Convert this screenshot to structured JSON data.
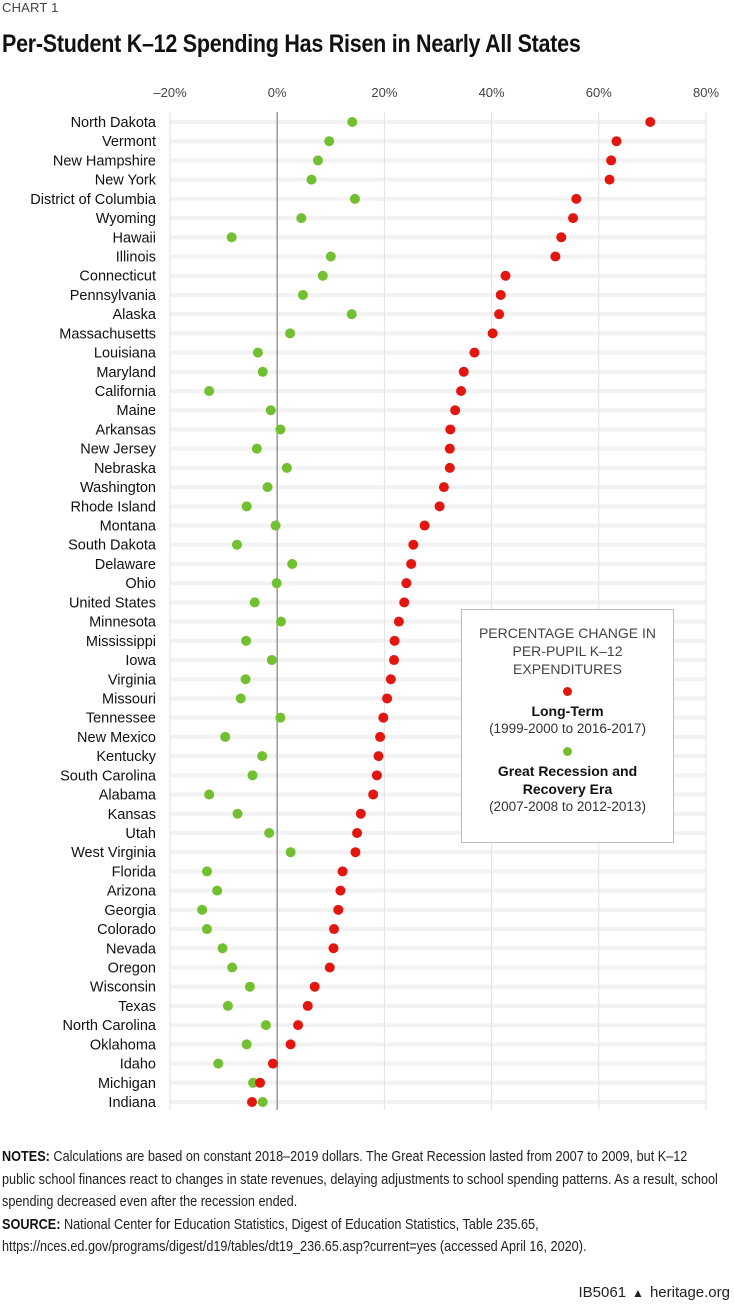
{
  "header": {
    "eyebrow": "CHART 1",
    "title": "Per-Student K–12 Spending Has Risen in Nearly All States"
  },
  "chart_data": {
    "type": "scatter",
    "subtype": "dot-plot",
    "title": "Per-Student K–12 Spending Has Risen in Nearly All States",
    "xlabel": "",
    "ylabel": "",
    "xlim": [
      -20,
      80
    ],
    "xticks": [
      -20,
      0,
      20,
      40,
      60,
      80
    ],
    "xtick_labels": [
      "–20%",
      "0%",
      "20%",
      "40%",
      "60%",
      "80%"
    ],
    "grid": "vertical",
    "legend_placement": "right-middle",
    "categories": [
      "North Dakota",
      "Vermont",
      "New Hampshire",
      "New York",
      "District of Columbia",
      "Wyoming",
      "Hawaii",
      "Illinois",
      "Connecticut",
      "Pennsylvania",
      "Alaska",
      "Massachusetts",
      "Louisiana",
      "Maryland",
      "California",
      "Maine",
      "Arkansas",
      "New Jersey",
      "Nebraska",
      "Washington",
      "Rhode Island",
      "Montana",
      "South Dakota",
      "Delaware",
      "Ohio",
      "United States",
      "Minnesota",
      "Mississippi",
      "Iowa",
      "Virginia",
      "Missouri",
      "Tennessee",
      "New Mexico",
      "Kentucky",
      "South Carolina",
      "Alabama",
      "Kansas",
      "Utah",
      "West Virginia",
      "Florida",
      "Arizona",
      "Georgia",
      "Colorado",
      "Nevada",
      "Oregon",
      "Wisconsin",
      "Texas",
      "North Carolina",
      "Oklahoma",
      "Idaho",
      "Michigan",
      "Indiana"
    ],
    "series": [
      {
        "name": "Long-Term",
        "sub": "(1999-2000 to 2016-2017)",
        "color": "#e3160f",
        "values": [
          69.6,
          63.3,
          62.3,
          62.0,
          55.8,
          55.2,
          53.0,
          51.9,
          42.6,
          41.7,
          41.4,
          40.2,
          36.8,
          34.8,
          34.3,
          33.2,
          32.3,
          32.2,
          32.2,
          31.1,
          30.3,
          27.5,
          25.4,
          25.0,
          24.1,
          23.7,
          22.7,
          21.9,
          21.8,
          21.2,
          20.5,
          19.8,
          19.2,
          18.9,
          18.6,
          17.9,
          15.6,
          14.9,
          14.6,
          12.2,
          11.8,
          11.4,
          10.6,
          10.5,
          9.8,
          7.0,
          5.7,
          3.9,
          2.5,
          -0.8,
          -3.2,
          -4.7
        ]
      },
      {
        "name": "Great Recession and Recovery Era",
        "sub": "(2007-2008 to 2012-2013)",
        "color": "#72bf2f",
        "values": [
          14.0,
          9.7,
          7.6,
          6.4,
          14.5,
          4.5,
          -8.5,
          10.0,
          8.5,
          4.8,
          13.9,
          2.4,
          -3.6,
          -2.7,
          -12.7,
          -1.2,
          0.6,
          -3.8,
          1.8,
          -1.8,
          -5.7,
          -0.3,
          -7.5,
          2.8,
          -0.1,
          -4.2,
          0.7,
          -5.8,
          -1.0,
          -5.9,
          -6.8,
          0.6,
          -9.7,
          -2.8,
          -4.6,
          -12.7,
          -7.4,
          -1.5,
          2.5,
          -13.1,
          -11.2,
          -14.0,
          -13.1,
          -10.2,
          -8.4,
          -5.1,
          -9.2,
          -2.1,
          -5.7,
          -11.0,
          -4.5,
          -2.7
        ]
      }
    ],
    "legend_title": "PERCENTAGE CHANGE IN PER-PUPIL K–12 EXPENDITURES"
  },
  "notes": {
    "notes_label": "NOTES:",
    "notes_text": " Calculations are based on constant 2018–2019 dollars. The Great Recession lasted from 2007 to 2009, but K–12 public school finances react to changes in state revenues, delaying adjustments to school spending patterns. As a result, school spending decreased even after the recession ended.",
    "source_label": "SOURCE:",
    "source_text": " National Center for Education Statistics, Digest of Education Statistics, Table 235.65, https://nces.ed.gov/programs/digest/d19/tables/dt19_236.65.asp?current=yes (accessed April 16, 2020)."
  },
  "footer": {
    "report_id": "IB5061",
    "icon": "liberty-bell-icon",
    "site": "heritage.org"
  }
}
